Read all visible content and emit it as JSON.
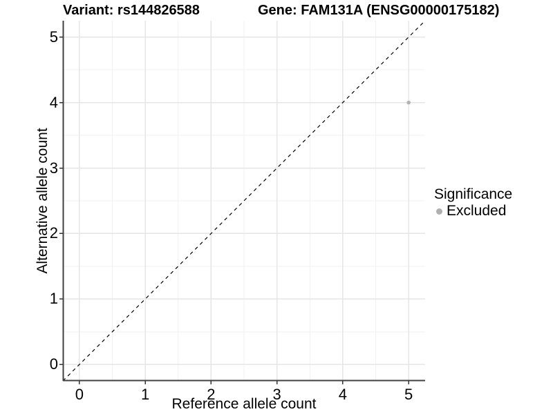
{
  "chart_data": {
    "type": "scatter",
    "title_left": "Variant: rs144826588",
    "title_right": "Gene: FAM131A (ENSG00000175182)",
    "xlabel": "Reference allele count",
    "ylabel": "Alternative allele count",
    "xlim": [
      -0.25,
      5.25
    ],
    "ylim": [
      -0.25,
      5.25
    ],
    "x_ticks": [
      0,
      1,
      2,
      3,
      4,
      5
    ],
    "y_ticks": [
      0,
      1,
      2,
      3,
      4,
      5
    ],
    "x_minor_ticks": [
      0.5,
      1.5,
      2.5,
      3.5,
      4.5
    ],
    "y_minor_ticks": [
      0.5,
      1.5,
      2.5,
      3.5,
      4.5
    ],
    "grid": true,
    "points": [
      {
        "x": 5,
        "y": 4,
        "series": "Excluded"
      }
    ],
    "reference_line": {
      "type": "identity",
      "slope": 1,
      "intercept": 0,
      "style": "dashed"
    },
    "legend": {
      "title": "Significance",
      "position": "right",
      "entries": [
        {
          "label": "Excluded",
          "color": "#b0b0b0"
        }
      ]
    }
  },
  "colors": {
    "background": "#ffffff",
    "axis_line": "#404040",
    "tick_mark": "#333333",
    "grid_major": "#e6e6e6",
    "grid_minor": "#f2f2f2",
    "point": "#b3b3b3",
    "reference_line": "#000000",
    "text": "#000000"
  }
}
